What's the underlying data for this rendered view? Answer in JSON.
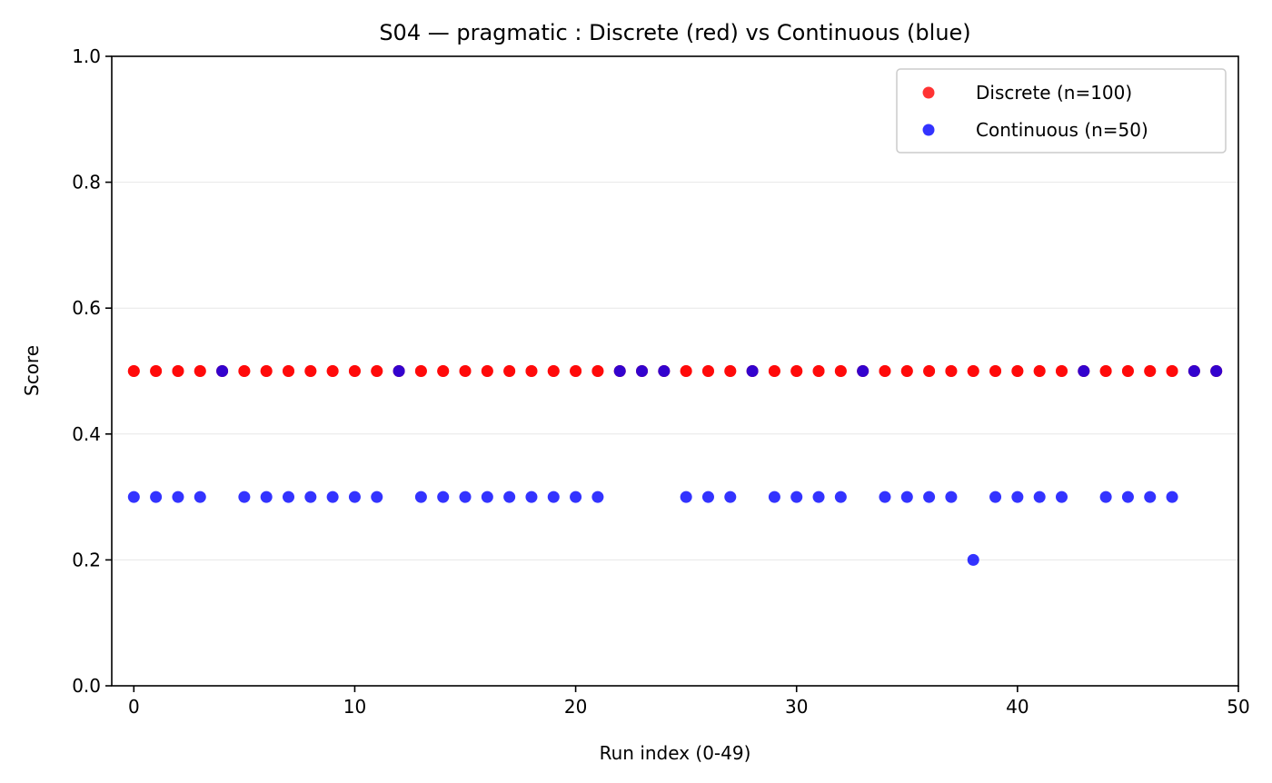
{
  "chart_data": {
    "type": "scatter",
    "title": "S04 — pragmatic : Discrete (red) vs Continuous (blue)",
    "xlabel": "Run index (0-49)",
    "ylabel": "Score",
    "xlim": [
      -1,
      50
    ],
    "ylim": [
      0,
      1
    ],
    "xticks": [
      0,
      10,
      20,
      30,
      40,
      50
    ],
    "yticks": [
      0.0,
      0.2,
      0.4,
      0.6,
      0.8,
      1.0
    ],
    "ytick_labels": [
      "0.0",
      "0.2",
      "0.4",
      "0.6",
      "0.8",
      "1.0"
    ],
    "grid": "horizontal",
    "legend_position": "top-right",
    "series": [
      {
        "name": "Discrete (n=100)",
        "color": "#ff0000",
        "x": [
          0,
          0,
          1,
          1,
          2,
          2,
          3,
          3,
          4,
          4,
          5,
          5,
          6,
          6,
          7,
          7,
          8,
          8,
          9,
          9,
          10,
          10,
          11,
          11,
          12,
          12,
          13,
          13,
          14,
          14,
          15,
          15,
          16,
          16,
          17,
          17,
          18,
          18,
          19,
          19,
          20,
          20,
          21,
          21,
          22,
          22,
          23,
          23,
          24,
          24,
          25,
          25,
          26,
          26,
          27,
          27,
          28,
          28,
          29,
          29,
          30,
          30,
          31,
          31,
          32,
          32,
          33,
          33,
          34,
          34,
          35,
          35,
          36,
          36,
          37,
          37,
          38,
          38,
          39,
          39,
          40,
          40,
          41,
          41,
          42,
          42,
          43,
          43,
          44,
          44,
          45,
          45,
          46,
          46,
          47,
          47,
          48,
          48,
          49,
          49
        ],
        "y": [
          0.5,
          0.5,
          0.5,
          0.5,
          0.5,
          0.5,
          0.5,
          0.5,
          0.5,
          0.5,
          0.5,
          0.5,
          0.5,
          0.5,
          0.5,
          0.5,
          0.5,
          0.5,
          0.5,
          0.5,
          0.5,
          0.5,
          0.5,
          0.5,
          0.5,
          0.5,
          0.5,
          0.5,
          0.5,
          0.5,
          0.5,
          0.5,
          0.5,
          0.5,
          0.5,
          0.5,
          0.5,
          0.5,
          0.5,
          0.5,
          0.5,
          0.5,
          0.5,
          0.5,
          0.5,
          0.5,
          0.5,
          0.5,
          0.5,
          0.5,
          0.5,
          0.5,
          0.5,
          0.5,
          0.5,
          0.5,
          0.5,
          0.5,
          0.5,
          0.5,
          0.5,
          0.5,
          0.5,
          0.5,
          0.5,
          0.5,
          0.5,
          0.5,
          0.5,
          0.5,
          0.5,
          0.5,
          0.5,
          0.5,
          0.5,
          0.5,
          0.5,
          0.5,
          0.5,
          0.5,
          0.5,
          0.5,
          0.5,
          0.5,
          0.5,
          0.5,
          0.5,
          0.5,
          0.5,
          0.5,
          0.5,
          0.5,
          0.5,
          0.5,
          0.5,
          0.5,
          0.5,
          0.5,
          0.5,
          0.5
        ]
      },
      {
        "name": "Continuous (n=50)",
        "color": "#0000ff",
        "x": [
          0,
          1,
          2,
          3,
          4,
          5,
          6,
          7,
          8,
          9,
          10,
          11,
          12,
          13,
          14,
          15,
          16,
          17,
          18,
          19,
          20,
          21,
          22,
          23,
          24,
          25,
          26,
          27,
          28,
          29,
          30,
          31,
          32,
          33,
          34,
          35,
          36,
          37,
          38,
          39,
          40,
          41,
          42,
          43,
          44,
          45,
          46,
          47,
          48,
          49
        ],
        "y": [
          0.3,
          0.3,
          0.3,
          0.3,
          0.5,
          0.3,
          0.3,
          0.3,
          0.3,
          0.3,
          0.3,
          0.3,
          0.5,
          0.3,
          0.3,
          0.3,
          0.3,
          0.3,
          0.3,
          0.3,
          0.3,
          0.3,
          0.5,
          0.5,
          0.5,
          0.3,
          0.3,
          0.3,
          0.5,
          0.3,
          0.3,
          0.3,
          0.3,
          0.5,
          0.3,
          0.3,
          0.3,
          0.3,
          0.2,
          0.3,
          0.3,
          0.3,
          0.3,
          0.5,
          0.3,
          0.3,
          0.3,
          0.3,
          0.5,
          0.5
        ]
      }
    ]
  }
}
